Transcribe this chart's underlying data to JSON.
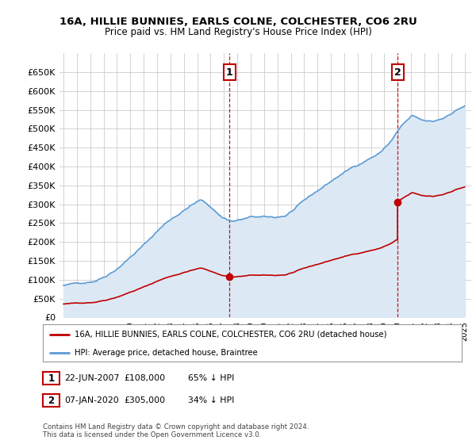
{
  "title": "16A, HILLIE BUNNIES, EARLS COLNE, COLCHESTER, CO6 2RU",
  "subtitle": "Price paid vs. HM Land Registry's House Price Index (HPI)",
  "legend_line1": "16A, HILLIE BUNNIES, EARLS COLNE, COLCHESTER, CO6 2RU (detached house)",
  "legend_line2": "HPI: Average price, detached house, Braintree",
  "annotation1_label": "1",
  "annotation1_date": "22-JUN-2007",
  "annotation1_price": "£108,000",
  "annotation1_hpi": "65% ↓ HPI",
  "annotation2_label": "2",
  "annotation2_date": "07-JAN-2020",
  "annotation2_price": "£305,000",
  "annotation2_hpi": "34% ↓ HPI",
  "footer": "Contains HM Land Registry data © Crown copyright and database right 2024.\nThis data is licensed under the Open Government Licence v3.0.",
  "hpi_color": "#5b9bd5",
  "hpi_fill_color": "#dce9f5",
  "price_color": "#c00000",
  "marker_color": "#c00000",
  "annotation_color": "#c00000",
  "ylim": [
    0,
    700000
  ],
  "yticks": [
    0,
    50000,
    100000,
    150000,
    200000,
    250000,
    300000,
    350000,
    400000,
    450000,
    500000,
    550000,
    600000,
    650000
  ],
  "background_color": "#ffffff",
  "grid_color": "#cccccc"
}
